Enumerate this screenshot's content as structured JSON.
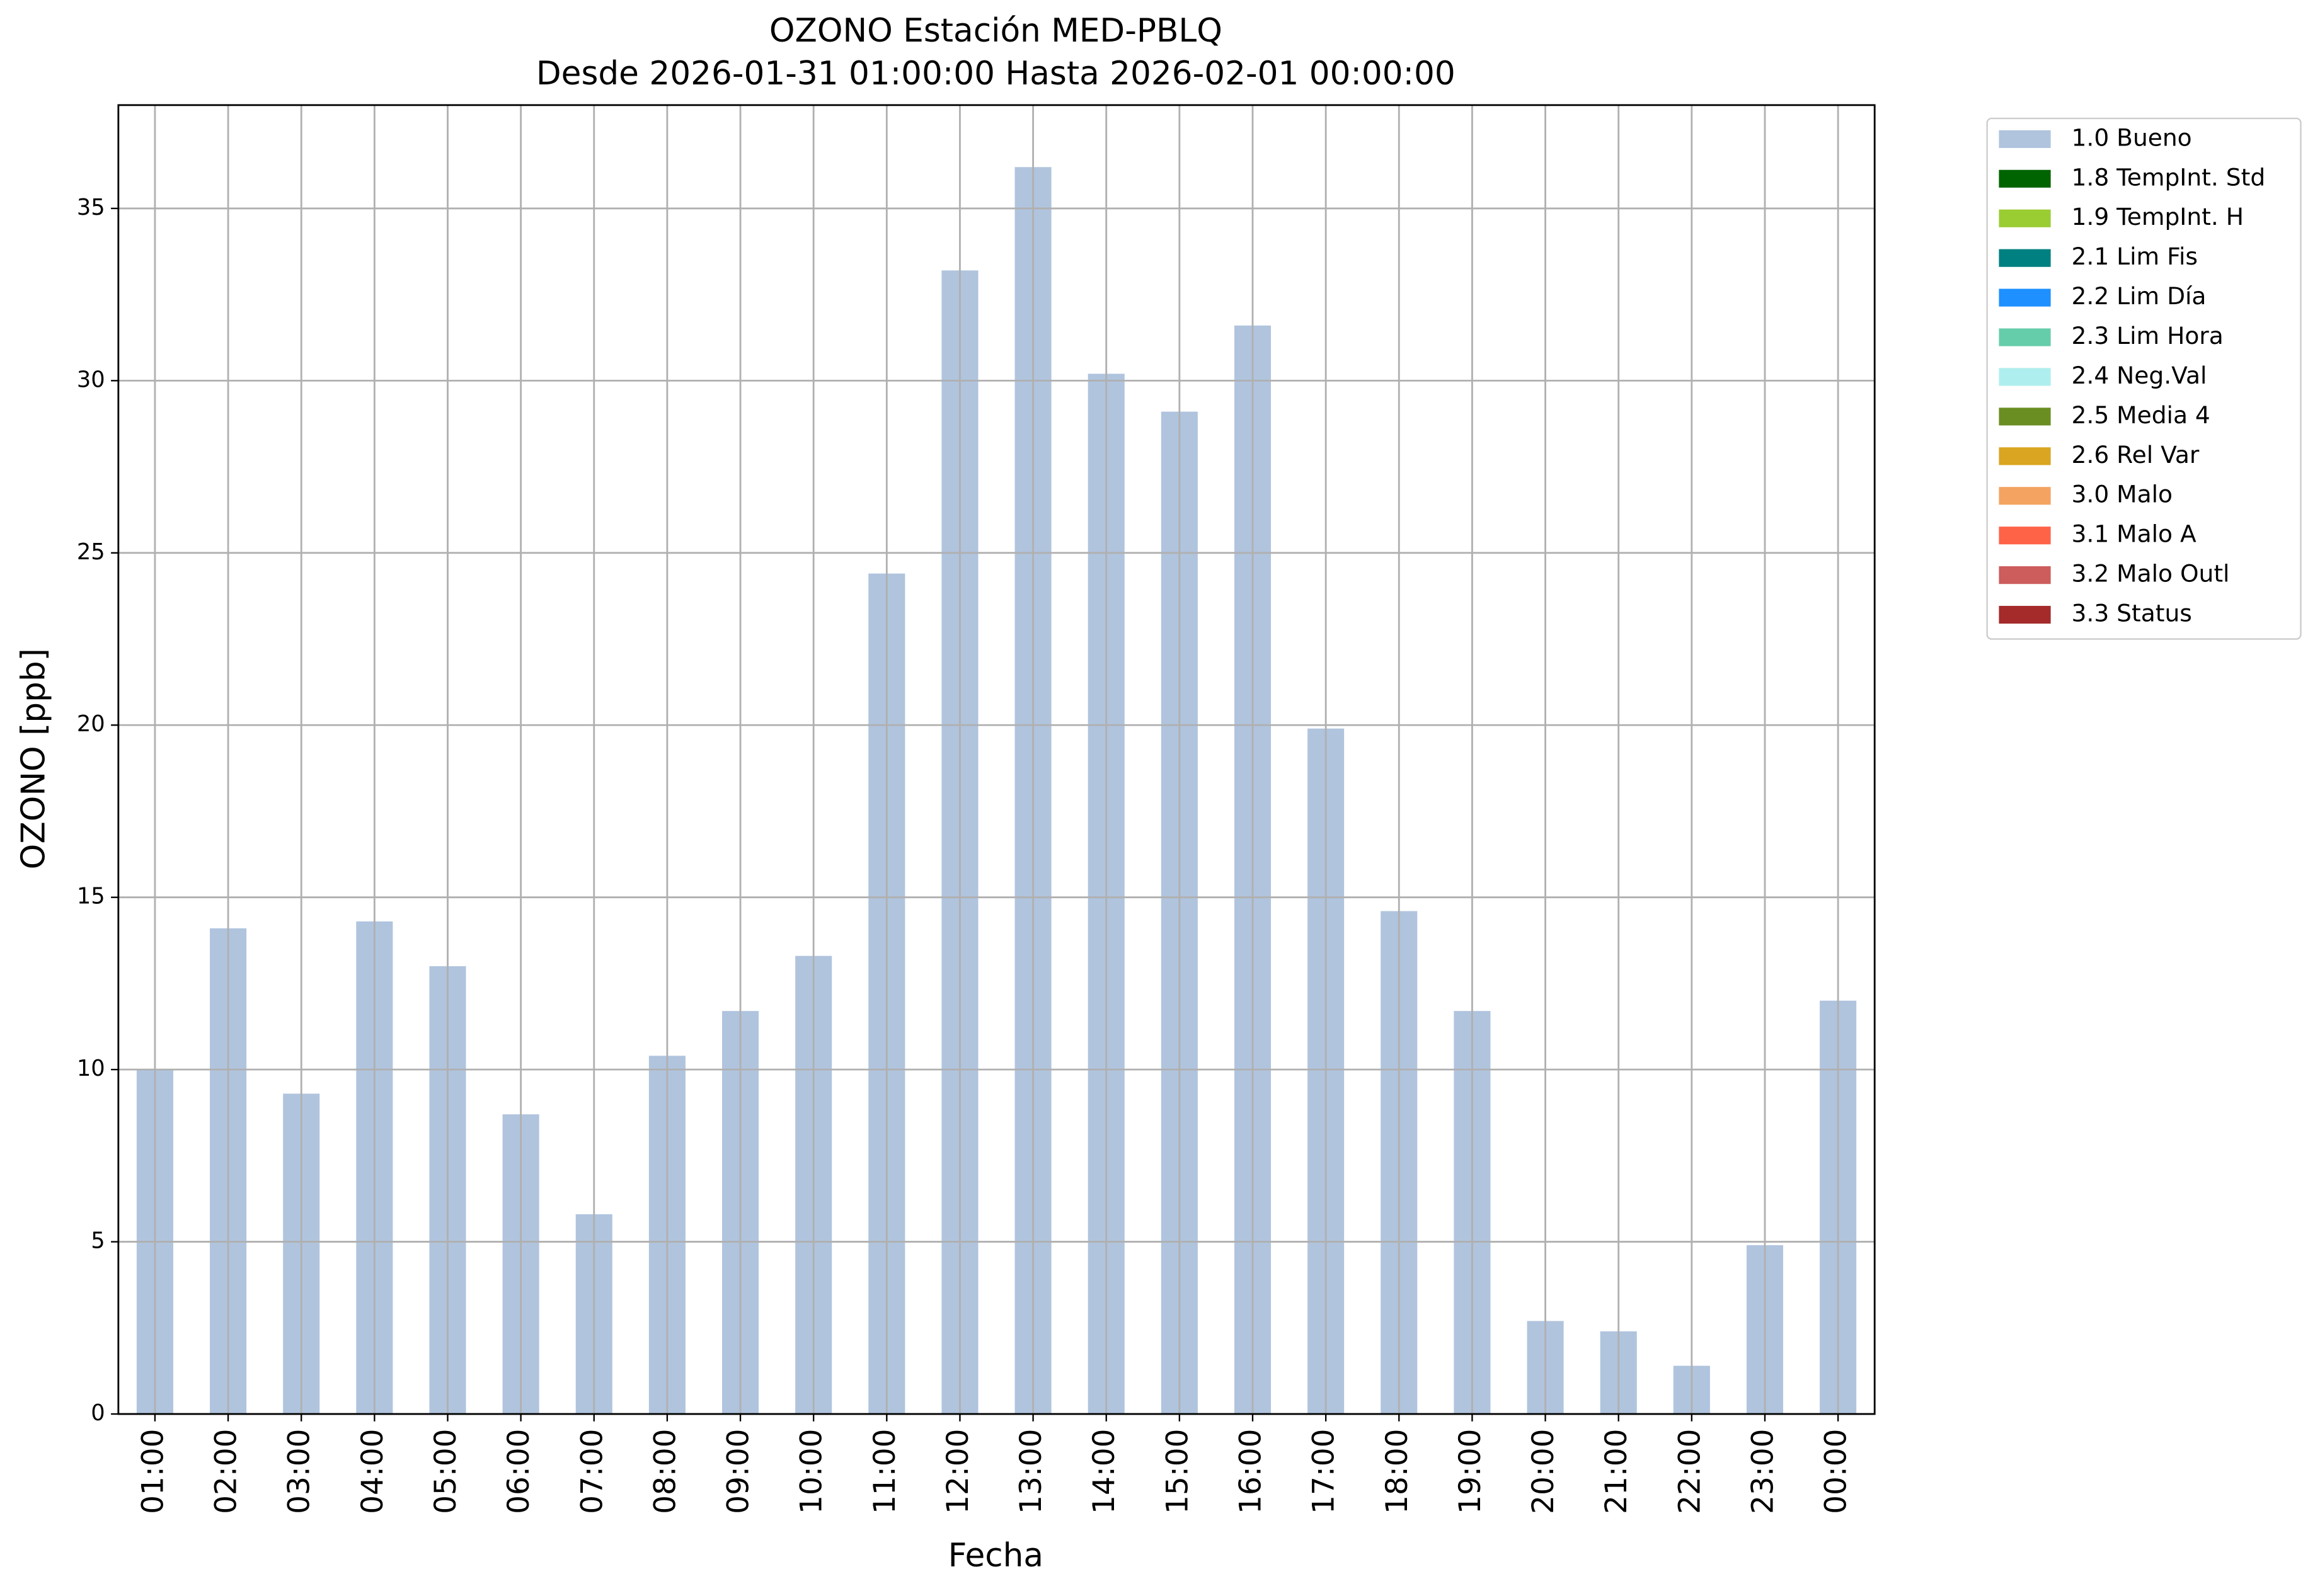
{
  "chart_data": {
    "type": "bar",
    "stacked": true,
    "title": "OZONO Estación MED-PBLQ",
    "subtitle": "Desde 2026-01-31 01:00:00 Hasta 2026-02-01 00:00:00",
    "x_label": "Fecha",
    "y_label": "OZONO [ppb]",
    "categories": [
      "01:00",
      "02:00",
      "03:00",
      "04:00",
      "05:00",
      "06:00",
      "07:00",
      "08:00",
      "09:00",
      "10:00",
      "11:00",
      "12:00",
      "13:00",
      "14:00",
      "15:00",
      "16:00",
      "17:00",
      "18:00",
      "19:00",
      "20:00",
      "21:00",
      "22:00",
      "23:00",
      "00:00"
    ],
    "series": [
      {
        "name": "1.0 Bueno",
        "color": "#b0c4de",
        "values": [
          10.0,
          14.1,
          9.3,
          14.3,
          13.0,
          8.7,
          5.8,
          10.4,
          11.7,
          13.3,
          24.4,
          33.2,
          36.2,
          30.2,
          29.1,
          31.6,
          19.9,
          14.6,
          11.7,
          2.7,
          2.4,
          1.4,
          4.9,
          12.0
        ]
      },
      {
        "name": "1.8 TempInt. Std",
        "color": "#006400",
        "values": [
          0,
          0,
          0,
          0,
          0,
          0,
          0,
          0,
          0,
          0,
          0,
          0,
          0,
          0,
          0,
          0,
          0,
          0,
          0,
          0,
          0,
          0,
          0,
          0
        ]
      },
      {
        "name": "1.9 TempInt. H",
        "color": "#9acd32",
        "values": [
          0,
          0,
          0,
          0,
          0,
          0,
          0,
          0,
          0,
          0,
          0,
          0,
          0,
          0,
          0,
          0,
          0,
          0,
          0,
          0,
          0,
          0,
          0,
          0
        ]
      },
      {
        "name": "2.1 Lim Fis",
        "color": "#008080",
        "values": [
          0,
          0,
          0,
          0,
          0,
          0,
          0,
          0,
          0,
          0,
          0,
          0,
          0,
          0,
          0,
          0,
          0,
          0,
          0,
          0,
          0,
          0,
          0,
          0
        ]
      },
      {
        "name": "2.2 Lim Día",
        "color": "#1e90ff",
        "values": [
          0,
          0,
          0,
          0,
          0,
          0,
          0,
          0,
          0,
          0,
          0,
          0,
          0,
          0,
          0,
          0,
          0,
          0,
          0,
          0,
          0,
          0,
          0,
          0
        ]
      },
      {
        "name": "2.3 Lim Hora",
        "color": "#66cdaa",
        "values": [
          0,
          0,
          0,
          0,
          0,
          0,
          0,
          0,
          0,
          0,
          0,
          0,
          0,
          0,
          0,
          0,
          0,
          0,
          0,
          0,
          0,
          0,
          0,
          0
        ]
      },
      {
        "name": "2.4 Neg.Val",
        "color": "#afeeee",
        "values": [
          0,
          0,
          0,
          0,
          0,
          0,
          0,
          0,
          0,
          0,
          0,
          0,
          0,
          0,
          0,
          0,
          0,
          0,
          0,
          0,
          0,
          0,
          0,
          0
        ]
      },
      {
        "name": "2.5 Media 4",
        "color": "#6b8e23",
        "values": [
          0,
          0,
          0,
          0,
          0,
          0,
          0,
          0,
          0,
          0,
          0,
          0,
          0,
          0,
          0,
          0,
          0,
          0,
          0,
          0,
          0,
          0,
          0,
          0
        ]
      },
      {
        "name": "2.6 Rel Var",
        "color": "#daa520",
        "values": [
          0,
          0,
          0,
          0,
          0,
          0,
          0,
          0,
          0,
          0,
          0,
          0,
          0,
          0,
          0,
          0,
          0,
          0,
          0,
          0,
          0,
          0,
          0,
          0
        ]
      },
      {
        "name": "3.0 Malo",
        "color": "#f4a460",
        "values": [
          0,
          0,
          0,
          0,
          0,
          0,
          0,
          0,
          0,
          0,
          0,
          0,
          0,
          0,
          0,
          0,
          0,
          0,
          0,
          0,
          0,
          0,
          0,
          0
        ]
      },
      {
        "name": "3.1 Malo A",
        "color": "#ff6347",
        "values": [
          0,
          0,
          0,
          0,
          0,
          0,
          0,
          0,
          0,
          0,
          0,
          0,
          0,
          0,
          0,
          0,
          0,
          0,
          0,
          0,
          0,
          0,
          0,
          0
        ]
      },
      {
        "name": "3.2 Malo Outl",
        "color": "#cd5c5c",
        "values": [
          0,
          0,
          0,
          0,
          0,
          0,
          0,
          0,
          0,
          0,
          0,
          0,
          0,
          0,
          0,
          0,
          0,
          0,
          0,
          0,
          0,
          0,
          0,
          0
        ]
      },
      {
        "name": "3.3 Status",
        "color": "#a52a2a",
        "values": [
          0,
          0,
          0,
          0,
          0,
          0,
          0,
          0,
          0,
          0,
          0,
          0,
          0,
          0,
          0,
          0,
          0,
          0,
          0,
          0,
          0,
          0,
          0,
          0
        ]
      }
    ],
    "ylim": [
      0,
      38
    ],
    "yticks": [
      0,
      5,
      10,
      15,
      20,
      25,
      30,
      35
    ],
    "grid": true,
    "legend": "outside-right"
  }
}
